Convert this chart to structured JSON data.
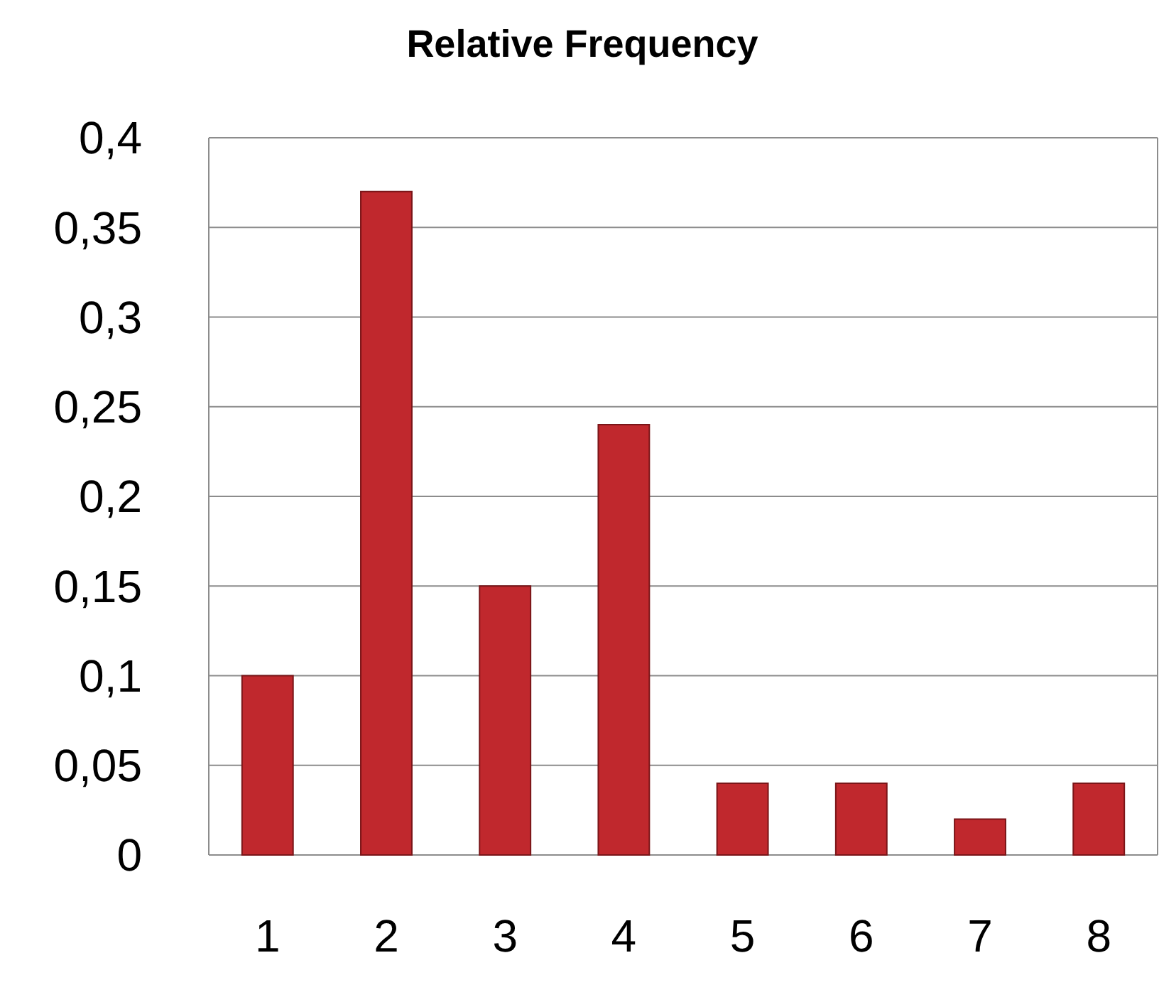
{
  "chart_data": {
    "type": "bar",
    "title": "Relative Frequency",
    "categories": [
      "1",
      "2",
      "3",
      "4",
      "5",
      "6",
      "7",
      "8"
    ],
    "values": [
      0.1,
      0.37,
      0.15,
      0.24,
      0.04,
      0.04,
      0.02,
      0.04
    ],
    "color": "#c0282d",
    "ylim": [
      0,
      0.4
    ],
    "yticks": [
      {
        "value": 0,
        "label": "0"
      },
      {
        "value": 0.05,
        "label": "0,05"
      },
      {
        "value": 0.1,
        "label": "0,1"
      },
      {
        "value": 0.15,
        "label": "0,15"
      },
      {
        "value": 0.2,
        "label": "0,2"
      },
      {
        "value": 0.25,
        "label": "0,25"
      },
      {
        "value": 0.3,
        "label": "0,3"
      },
      {
        "value": 0.35,
        "label": "0,35"
      },
      {
        "value": 0.4,
        "label": "0,4"
      }
    ],
    "grid": "y"
  }
}
